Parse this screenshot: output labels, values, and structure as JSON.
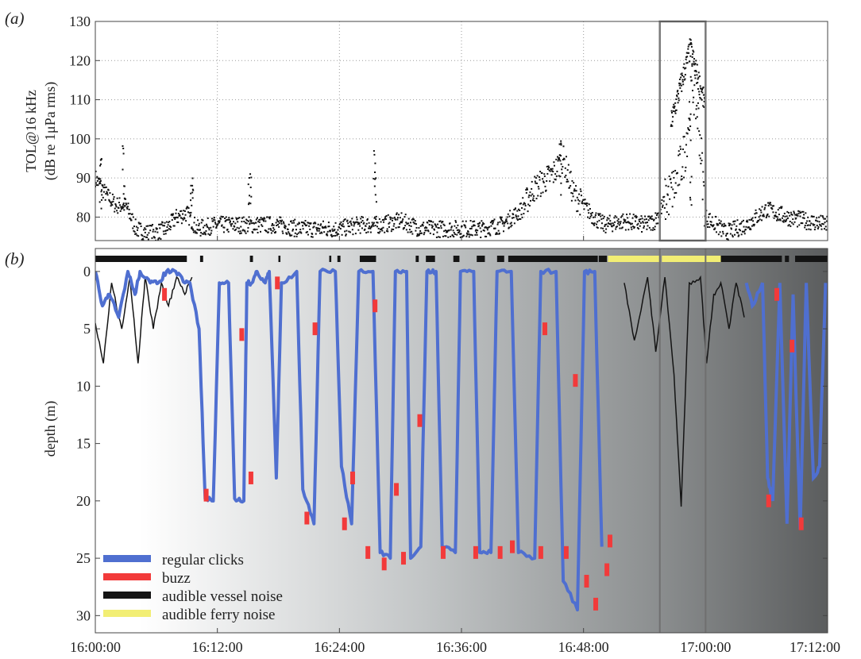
{
  "panel_a": {
    "label": "(a)",
    "ylabel_line1": "TOL@16 kHz",
    "ylabel_line2": "(dB re 1μPa rms)"
  },
  "panel_b": {
    "label": "(b)",
    "ylabel": "depth (m)"
  },
  "legend": [
    {
      "label": "regular clicks",
      "color": "#4f6fd0"
    },
    {
      "label": "buzz",
      "color": "#f23a3a"
    },
    {
      "label": "audible vessel noise",
      "color": "#141414"
    },
    {
      "label": "audible ferry noise",
      "color": "#f2ee74"
    }
  ],
  "chart_data": [
    {
      "type": "scatter",
      "panel": "a",
      "ylabel": "TOL@16 kHz (dB re 1μPa rms)",
      "xlabel": "",
      "x_unit": "minutes after 16:00:00",
      "xlim": [
        0,
        72
      ],
      "ylim": [
        74,
        130
      ],
      "y_ticks": [
        80,
        90,
        100,
        110,
        120,
        130
      ],
      "x_ticks": [
        "16:00:00",
        "16:12:00",
        "16:24:00",
        "16:36:00",
        "16:48:00",
        "17:00:00",
        "17:12:00"
      ],
      "grid": true,
      "color": "#111111",
      "highlight_box_minutes": [
        55.5,
        60.0
      ],
      "series": [
        {
          "x": [
            0,
            1,
            2,
            3,
            4,
            5,
            6,
            7,
            8,
            9,
            10,
            12,
            14,
            16,
            18,
            20,
            22,
            24,
            26,
            28,
            30,
            32,
            34,
            36,
            38,
            40,
            41,
            42,
            43,
            44,
            45,
            46,
            47,
            48,
            49,
            50,
            52,
            54,
            55,
            56,
            57,
            58,
            58.7,
            59.3,
            60,
            61,
            62,
            63,
            64,
            65,
            66,
            67,
            68,
            70,
            72
          ],
          "y": [
            90,
            86,
            83,
            83,
            77,
            76,
            76,
            77,
            80,
            81,
            77,
            78,
            78,
            78,
            78,
            77,
            77,
            77,
            78,
            78,
            79,
            77,
            77,
            77,
            77,
            78,
            80,
            82,
            87,
            89,
            91,
            95,
            86,
            83,
            80,
            78,
            79,
            78,
            79,
            84,
            88,
            97,
            114,
            105,
            80,
            78,
            76,
            77,
            78,
            80,
            82,
            81,
            80,
            79,
            78
          ]
        }
      ],
      "spikes": [
        {
          "x": 0.5,
          "y": 95
        },
        {
          "x": 2.8,
          "y": 99
        },
        {
          "x": 9.5,
          "y": 91
        },
        {
          "x": 15.2,
          "y": 91
        },
        {
          "x": 27.5,
          "y": 97
        },
        {
          "x": 45.7,
          "y": 105
        },
        {
          "x": 58.5,
          "y": 125
        }
      ]
    },
    {
      "type": "line",
      "panel": "b",
      "ylabel": "depth (m)",
      "xlabel": "",
      "x_unit": "minutes after 16:00:00",
      "xlim": [
        0,
        72
      ],
      "ylim": [
        31.5,
        -2
      ],
      "y_ticks": [
        0,
        5,
        10,
        15,
        20,
        25,
        30
      ],
      "x_ticks": [
        "16:00:00",
        "16:12:00",
        "16:24:00",
        "16:36:00",
        "16:48:00",
        "17:00:00",
        "17:12:00"
      ],
      "series": [
        {
          "name": "regular clicks",
          "x": [
            0.0,
            0.7,
            1.4,
            2.3,
            3.2,
            3.9,
            4.4,
            5.4,
            6.2,
            7.0,
            7.9,
            8.8,
            9.3,
            10.2,
            10.8,
            11.6,
            12.2,
            13.1,
            13.7,
            14.6,
            14.9,
            15.4,
            15.9,
            16.7,
            17.1,
            17.8,
            18.3,
            19.8,
            20.4,
            21.5,
            22.1,
            23.6,
            24.2,
            25.2,
            25.9,
            27.3,
            28.0,
            29.0,
            29.5,
            30.6,
            31.0,
            32.0,
            32.6,
            33.5,
            34.1,
            35.4,
            35.9,
            37.2,
            37.8,
            38.9,
            39.5,
            40.9,
            41.6,
            43.2,
            43.8,
            45.3,
            46.0,
            47.4,
            48.1,
            49.1,
            49.8
          ],
          "y": [
            0,
            3,
            2,
            4,
            0,
            2,
            0,
            1,
            1,
            0,
            0,
            1,
            1,
            5,
            19.8,
            20,
            1,
            1,
            19.8,
            20,
            1,
            1,
            0,
            1,
            0,
            18,
            1,
            0,
            19,
            22,
            0,
            0,
            17,
            22,
            0,
            0,
            24.5,
            25,
            0,
            0,
            25,
            24,
            0,
            0,
            24,
            24.5,
            0,
            0,
            24.5,
            24.5,
            0,
            0,
            24.5,
            25,
            0,
            0,
            27,
            29.5,
            0,
            0,
            24
          ]
        },
        {
          "name": "buzz",
          "x": [
            6.8,
            10.9,
            14.4,
            15.3,
            17.9,
            20.8,
            21.6,
            24.5,
            25.3,
            26.8,
            27.5,
            28.4,
            29.6,
            30.3,
            31.9,
            34.2,
            37.4,
            39.8,
            41.0,
            43.8,
            44.2,
            46.3,
            47.2,
            48.3,
            49.2,
            50.3,
            50.6,
            66.2,
            67.0,
            68.5,
            69.4
          ],
          "y": [
            2,
            19.5,
            5.5,
            18,
            1,
            21.5,
            5,
            22,
            18,
            24.5,
            3,
            25.5,
            19,
            25,
            13,
            24.5,
            24.5,
            24.5,
            24,
            24.5,
            5,
            24.5,
            9.5,
            27,
            29,
            26,
            23.5,
            20,
            2,
            6.5,
            22
          ]
        },
        {
          "name": "audible vessel noise",
          "x": [
            0.0,
            0.8,
            1.6,
            2.6,
            3.4,
            4.2,
            4.9,
            5.7,
            6.5,
            7.2,
            8.0,
            8.8,
            9.5,
            52.0,
            53.0,
            54.3,
            55.1,
            56.0,
            56.9,
            57.6,
            58.4,
            59.5,
            60.1,
            60.8,
            61.5,
            62.3,
            63.0,
            63.8
          ],
          "y": [
            4.5,
            8,
            1,
            5,
            0.5,
            8,
            0.5,
            5,
            1,
            3,
            0.5,
            2,
            0.5,
            1,
            6,
            0.5,
            7,
            0.5,
            9,
            20.5,
            1,
            0.5,
            8,
            2,
            1,
            5,
            1,
            4
          ]
        }
      ],
      "bands": [
        {
          "name": "audible vessel noise",
          "start": 0.0,
          "end": 9.0
        },
        {
          "name": "audible vessel noise",
          "start": 10.3,
          "end": 10.6
        },
        {
          "name": "audible vessel noise",
          "start": 15.2,
          "end": 15.5
        },
        {
          "name": "audible vessel noise",
          "start": 18.0,
          "end": 18.2
        },
        {
          "name": "audible vessel noise",
          "start": 23.0,
          "end": 23.2
        },
        {
          "name": "audible vessel noise",
          "start": 23.8,
          "end": 24.1
        },
        {
          "name": "audible vessel noise",
          "start": 26.0,
          "end": 27.6
        },
        {
          "name": "audible vessel noise",
          "start": 31.5,
          "end": 31.8
        },
        {
          "name": "audible vessel noise",
          "start": 32.5,
          "end": 33.4
        },
        {
          "name": "audible vessel noise",
          "start": 35.2,
          "end": 35.8
        },
        {
          "name": "audible vessel noise",
          "start": 37.5,
          "end": 38.3
        },
        {
          "name": "audible vessel noise",
          "start": 39.5,
          "end": 40.2
        },
        {
          "name": "audible vessel noise",
          "start": 40.6,
          "end": 49.4
        },
        {
          "name": "audible vessel noise",
          "start": 49.5,
          "end": 50.3
        },
        {
          "name": "audible ferry noise",
          "start": 50.4,
          "end": 55.5
        },
        {
          "name": "audible ferry noise",
          "start": 55.7,
          "end": 61.5
        },
        {
          "name": "audible vessel noise",
          "start": 61.5,
          "end": 67.5
        },
        {
          "name": "audible vessel noise",
          "start": 67.8,
          "end": 68.2
        },
        {
          "name": "audible vessel noise",
          "start": 68.8,
          "end": 72.0
        }
      ],
      "legend_position": "bottom-left",
      "highlight_box_minutes": [
        55.5,
        60.0
      ]
    }
  ]
}
